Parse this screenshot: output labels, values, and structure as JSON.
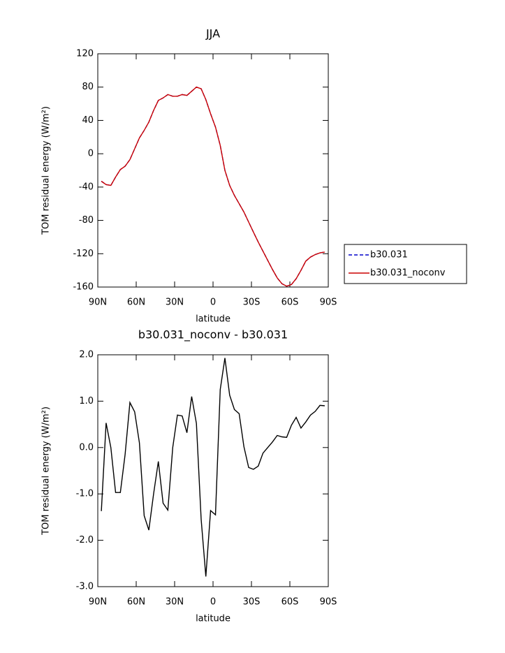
{
  "chart_data": [
    {
      "type": "line",
      "title": "JJA",
      "xlabel": "latitude",
      "ylabel": "TOM residual energy (W/m²)",
      "x": [
        87.2,
        83.5,
        79.8,
        76.1,
        72.4,
        68.7,
        64.9,
        61.2,
        57.5,
        53.8,
        50.1,
        46.4,
        42.7,
        39.0,
        35.3,
        31.5,
        27.8,
        24.1,
        20.4,
        16.7,
        13.0,
        9.3,
        5.6,
        1.9,
        -1.9,
        -5.6,
        -9.3,
        -13.0,
        -16.7,
        -20.4,
        -24.1,
        -27.8,
        -31.5,
        -35.3,
        -39.0,
        -42.7,
        -46.4,
        -50.1,
        -53.8,
        -57.5,
        -61.2,
        -64.9,
        -68.7,
        -72.4,
        -76.1,
        -79.8,
        -83.5,
        -87.2
      ],
      "series": [
        {
          "name": "b30.031",
          "color": "#0000cc",
          "linestyle": "dashed",
          "values": [
            -33,
            -37,
            -38,
            -28,
            -19,
            -15,
            -7,
            6,
            19,
            28,
            38,
            52,
            64,
            67,
            71,
            69,
            69,
            71,
            70,
            75,
            80,
            78,
            65,
            48,
            32,
            10,
            -20,
            -38,
            -50,
            -60,
            -70,
            -82,
            -94,
            -106,
            -117,
            -128,
            -139,
            -149,
            -156,
            -159,
            -157,
            -150,
            -140,
            -129,
            -124,
            -121,
            -119,
            -118
          ]
        },
        {
          "name": "b30.031_noconv",
          "color": "#cc0000",
          "linestyle": "solid",
          "values": [
            -33,
            -37,
            -38,
            -28,
            -19,
            -15,
            -7,
            6,
            19,
            28,
            38,
            52,
            64,
            67,
            71,
            69,
            69,
            71,
            70,
            75,
            80,
            78,
            65,
            48,
            32,
            10,
            -20,
            -38,
            -50,
            -60,
            -70,
            -82,
            -94,
            -106,
            -117,
            -128,
            -139,
            -149,
            -156,
            -159,
            -157,
            -150,
            -140,
            -129,
            -124,
            -121,
            -119,
            -118
          ]
        }
      ],
      "xlim": [
        90,
        -90
      ],
      "xticks": [
        {
          "value": 90,
          "label": "90N"
        },
        {
          "value": 60,
          "label": "60N"
        },
        {
          "value": 30,
          "label": "30N"
        },
        0,
        {
          "value": -30,
          "label": "30S"
        },
        {
          "value": -60,
          "label": "60S"
        },
        {
          "value": -90,
          "label": "90S"
        }
      ],
      "ylim": [
        -160,
        120
      ],
      "yticks": [
        -160,
        -120,
        -80,
        -40,
        0,
        40,
        80,
        120
      ],
      "legend": "right"
    },
    {
      "type": "line",
      "title": "b30.031_noconv - b30.031",
      "xlabel": "latitude",
      "ylabel": "TOM residual energy (W/m²)",
      "x": [
        87.2,
        83.5,
        79.8,
        76.1,
        72.4,
        68.7,
        64.9,
        61.2,
        57.5,
        53.8,
        50.1,
        46.4,
        42.7,
        39.0,
        35.3,
        31.5,
        27.8,
        24.1,
        20.4,
        16.7,
        13.0,
        9.3,
        5.6,
        1.9,
        -1.9,
        -5.6,
        -9.3,
        -13.0,
        -16.7,
        -20.4,
        -24.1,
        -27.8,
        -31.5,
        -35.3,
        -39.0,
        -42.7,
        -46.4,
        -50.1,
        -53.8,
        -57.5,
        -61.2,
        -64.9,
        -68.7,
        -72.4,
        -76.1,
        -79.8,
        -83.5,
        -87.2
      ],
      "series": [
        {
          "color": "#000000",
          "linestyle": "solid",
          "values": [
            -1.37,
            0.53,
            0.0,
            -0.97,
            -0.97,
            -0.15,
            0.97,
            0.77,
            0.1,
            -1.47,
            -1.78,
            -1.0,
            -0.3,
            -1.2,
            -1.35,
            0.0,
            0.7,
            0.68,
            0.32,
            1.1,
            0.52,
            -1.55,
            -2.78,
            -1.36,
            -1.45,
            1.25,
            1.93,
            1.13,
            0.82,
            0.73,
            0.02,
            -0.43,
            -0.47,
            -0.4,
            -0.12,
            0.0,
            0.12,
            0.26,
            0.23,
            0.22,
            0.48,
            0.65,
            0.42,
            0.55,
            0.7,
            0.78,
            0.91,
            0.9
          ]
        }
      ],
      "xlim": [
        90,
        -90
      ],
      "xticks": [
        {
          "value": 90,
          "label": "90N"
        },
        {
          "value": 60,
          "label": "60N"
        },
        {
          "value": 30,
          "label": "30N"
        },
        0,
        {
          "value": -30,
          "label": "30S"
        },
        {
          "value": -60,
          "label": "60S"
        },
        {
          "value": -90,
          "label": "90S"
        }
      ],
      "ylim": [
        -3,
        2
      ],
      "yticks": [
        {
          "value": -3,
          "label": "-3.0"
        },
        {
          "value": -2,
          "label": "-2.0"
        },
        {
          "value": -1,
          "label": "-1.0"
        },
        {
          "value": 0,
          "label": "0.0"
        },
        {
          "value": 1,
          "label": "1.0"
        },
        {
          "value": 2,
          "label": "2.0"
        }
      ]
    }
  ]
}
